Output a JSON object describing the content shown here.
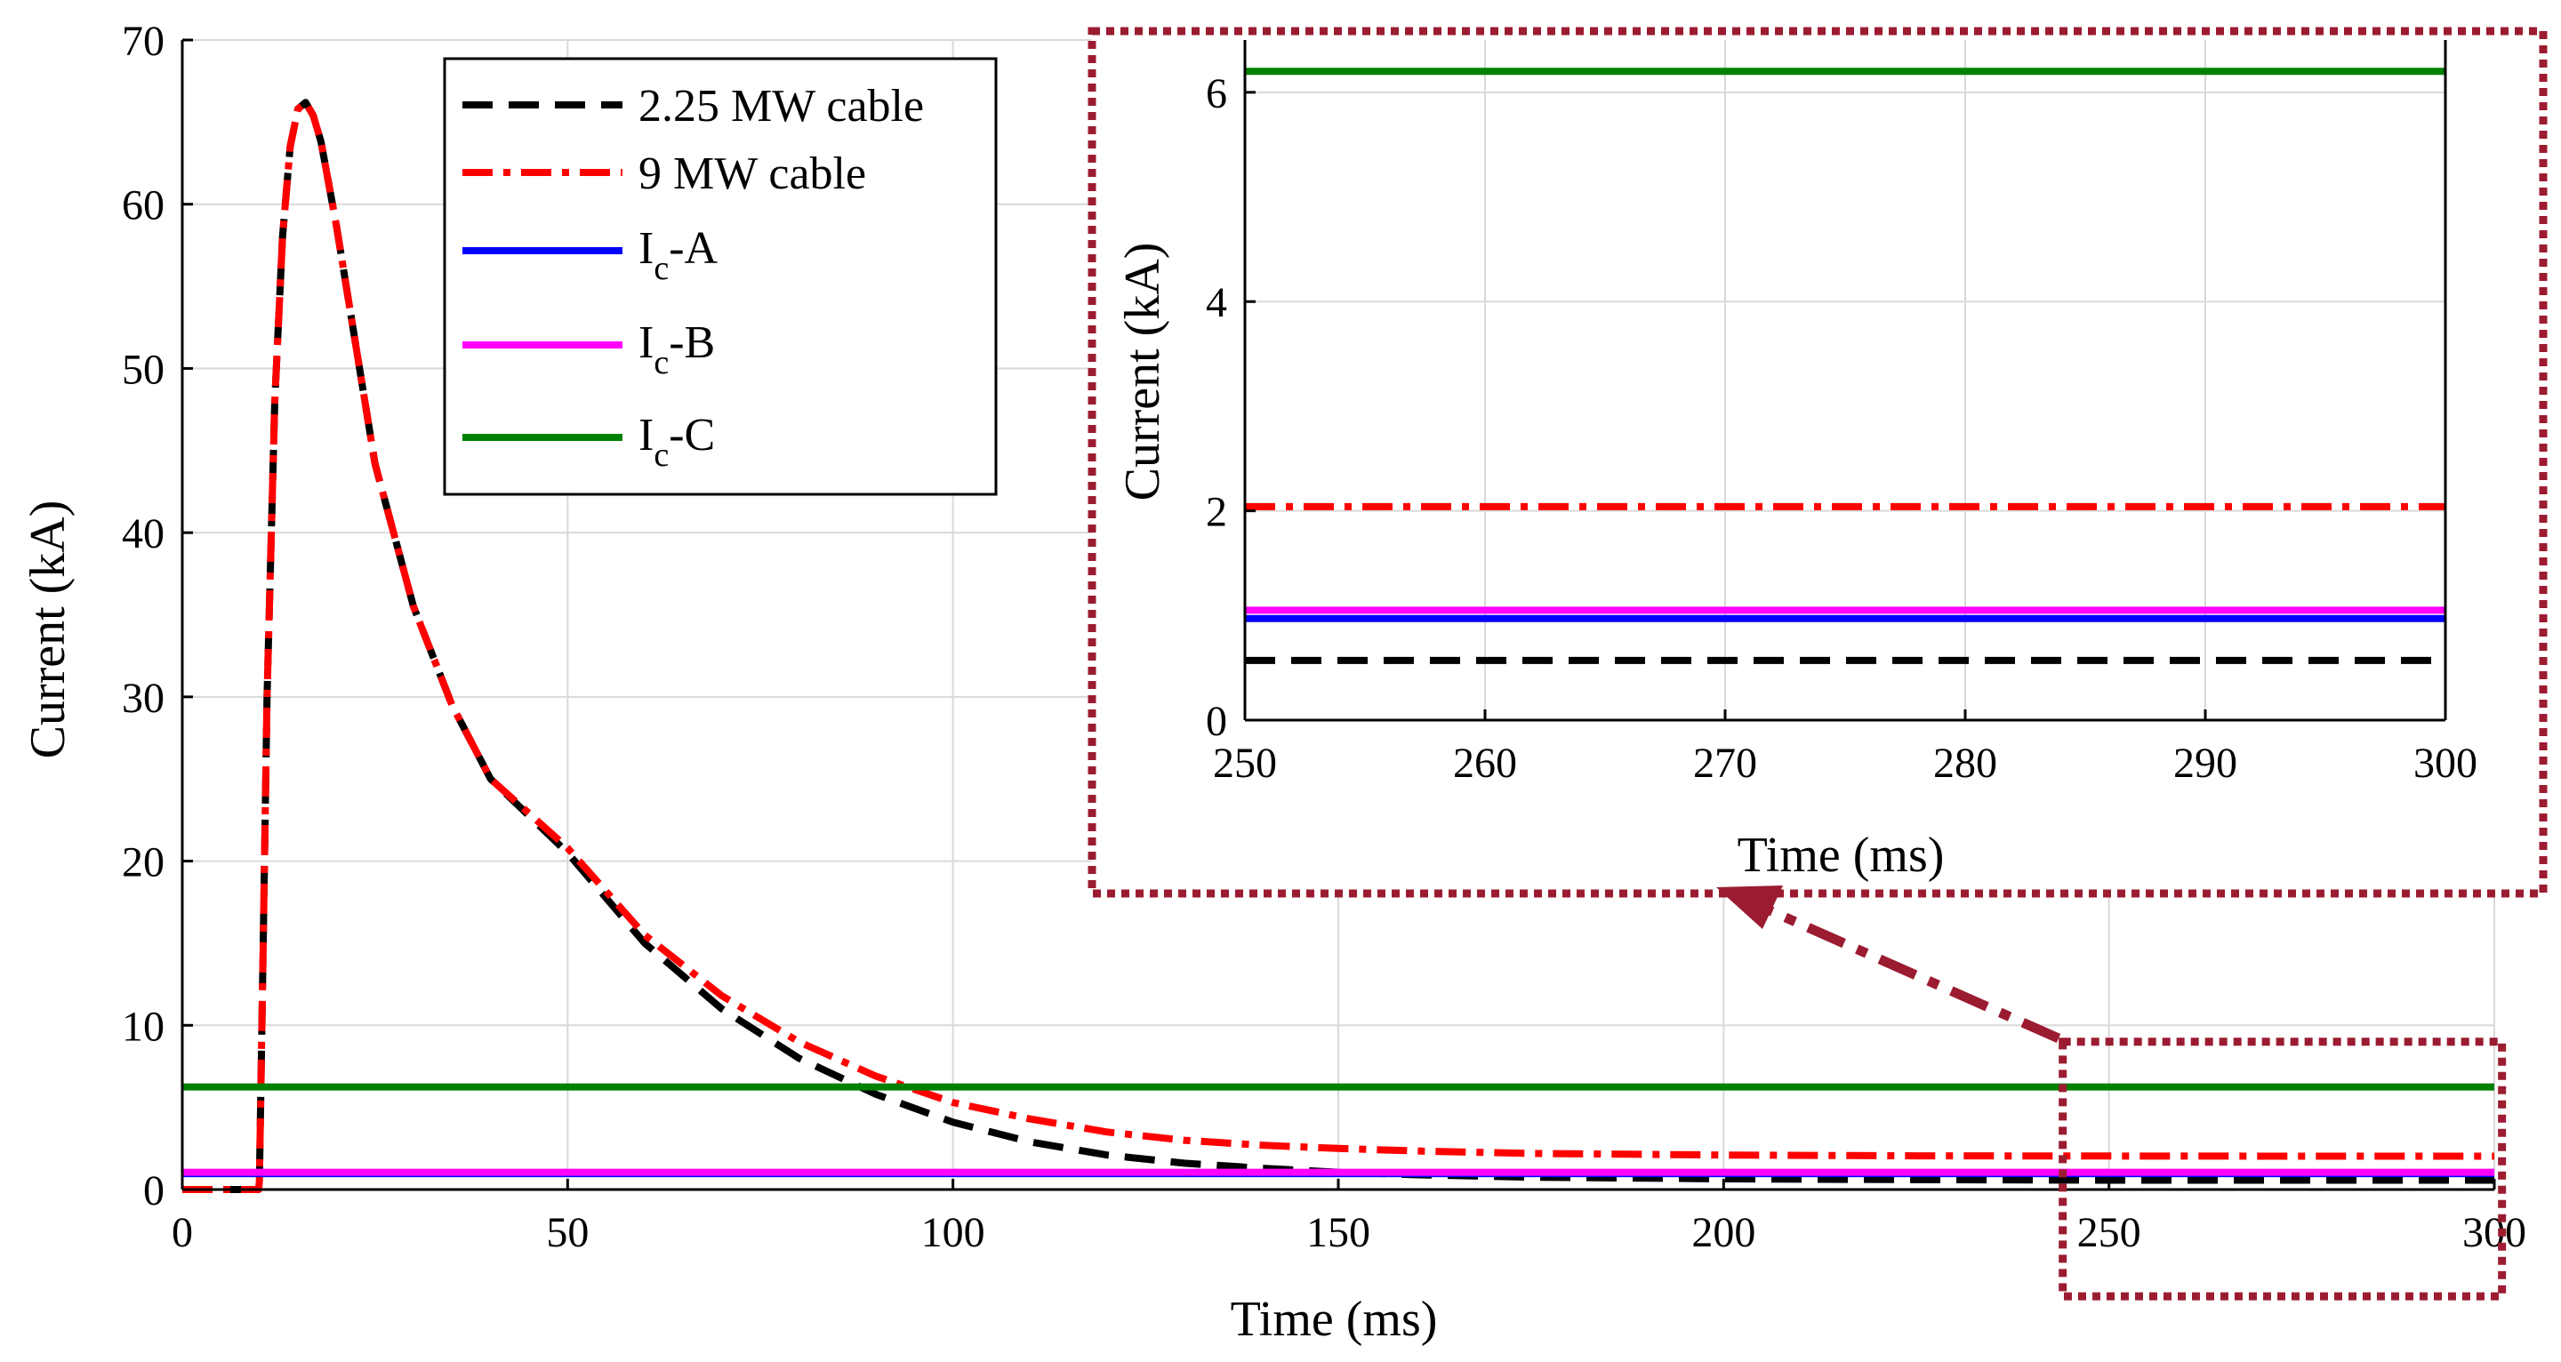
{
  "chart_data": [
    {
      "type": "line",
      "role": "main",
      "xlabel": "Time (ms)",
      "ylabel": "Current (kA)",
      "xlim": [
        0,
        300
      ],
      "ylim": [
        0,
        70
      ],
      "xticks": [
        0,
        50,
        100,
        150,
        200,
        250,
        300
      ],
      "yticks": [
        0,
        10,
        20,
        30,
        40,
        50,
        60,
        70
      ],
      "grid": true,
      "legend_position": "top-left-center",
      "series": [
        {
          "name": "2.25 MW cable",
          "color": "#000000",
          "style": "dashed",
          "x": [
            0,
            9.9,
            10,
            10.5,
            11,
            12,
            13,
            14,
            15,
            16,
            17,
            18,
            20,
            25,
            30,
            35,
            40,
            50,
            60,
            70,
            80,
            90,
            100,
            110,
            120,
            130,
            140,
            150,
            160,
            175,
            200,
            225,
            250,
            275,
            300
          ],
          "y": [
            0,
            0,
            0.5,
            15,
            30,
            48,
            58,
            63.5,
            65.8,
            66.2,
            65.4,
            63.8,
            58.7,
            44.2,
            35.5,
            29.5,
            25.0,
            20.5,
            15.0,
            11.0,
            8.0,
            5.8,
            4.1,
            2.9,
            2.1,
            1.6,
            1.3,
            1.05,
            0.9,
            0.75,
            0.65,
            0.6,
            0.57,
            0.57,
            0.57
          ]
        },
        {
          "name": "9 MW cable",
          "color": "#ff0000",
          "style": "dashdot",
          "x": [
            0,
            9.9,
            10,
            10.5,
            11,
            12,
            13,
            14,
            15,
            16,
            17,
            18,
            20,
            25,
            30,
            35,
            40,
            50,
            60,
            70,
            80,
            90,
            100,
            110,
            120,
            130,
            140,
            150,
            160,
            175,
            200,
            225,
            250,
            275,
            300
          ],
          "y": [
            0,
            0,
            0.5,
            15,
            30,
            48,
            58,
            63.5,
            65.8,
            66.2,
            65.4,
            63.8,
            58.7,
            44.2,
            35.5,
            29.5,
            25.0,
            20.8,
            15.5,
            11.8,
            9.0,
            6.9,
            5.3,
            4.3,
            3.5,
            3.0,
            2.7,
            2.5,
            2.35,
            2.2,
            2.1,
            2.05,
            2.04,
            2.03,
            2.03
          ]
        },
        {
          "name": "I_c-A",
          "label_main": "I",
          "label_sub": "c",
          "label_suffix": "-A",
          "color": "#0000ff",
          "style": "solid",
          "x": [
            0,
            300
          ],
          "y": [
            0.97,
            0.97
          ]
        },
        {
          "name": "I_c-B",
          "label_main": "I",
          "label_sub": "c",
          "label_suffix": "-B",
          "color": "#ff00ff",
          "style": "solid",
          "x": [
            0,
            300
          ],
          "y": [
            1.05,
            1.05
          ]
        },
        {
          "name": "I_c-C",
          "label_main": "I",
          "label_sub": "c",
          "label_suffix": "-C",
          "color": "#008000",
          "style": "solid",
          "x": [
            0,
            300
          ],
          "y": [
            6.25,
            6.25
          ]
        }
      ]
    },
    {
      "type": "line",
      "role": "inset",
      "xlabel": "Time (ms)",
      "ylabel": "Current (kA)",
      "xlim": [
        250,
        300
      ],
      "ylim": [
        0,
        6.5
      ],
      "xticks": [
        250,
        260,
        270,
        280,
        290,
        300
      ],
      "yticks": [
        0,
        2,
        4,
        6
      ],
      "grid": true,
      "series": [
        {
          "name": "2.25 MW cable",
          "color": "#000000",
          "style": "dashed",
          "x": [
            250,
            300
          ],
          "y": [
            0.57,
            0.57
          ]
        },
        {
          "name": "9 MW cable",
          "color": "#ff0000",
          "style": "dashdot",
          "x": [
            250,
            300
          ],
          "y": [
            2.04,
            2.04
          ]
        },
        {
          "name": "I_c-A",
          "color": "#0000ff",
          "style": "solid",
          "x": [
            250,
            300
          ],
          "y": [
            0.97,
            0.97
          ]
        },
        {
          "name": "I_c-B",
          "color": "#ff00ff",
          "style": "solid",
          "x": [
            250,
            300
          ],
          "y": [
            1.05,
            1.05
          ]
        },
        {
          "name": "I_c-C",
          "color": "#008000",
          "style": "solid",
          "x": [
            250,
            300
          ],
          "y": [
            6.2,
            6.2
          ]
        }
      ]
    }
  ],
  "zoom_annotation": {
    "color": "#9b1c31",
    "source_range": {
      "x": [
        244,
        301
      ],
      "y": [
        -6.5,
        9.0
      ]
    }
  }
}
